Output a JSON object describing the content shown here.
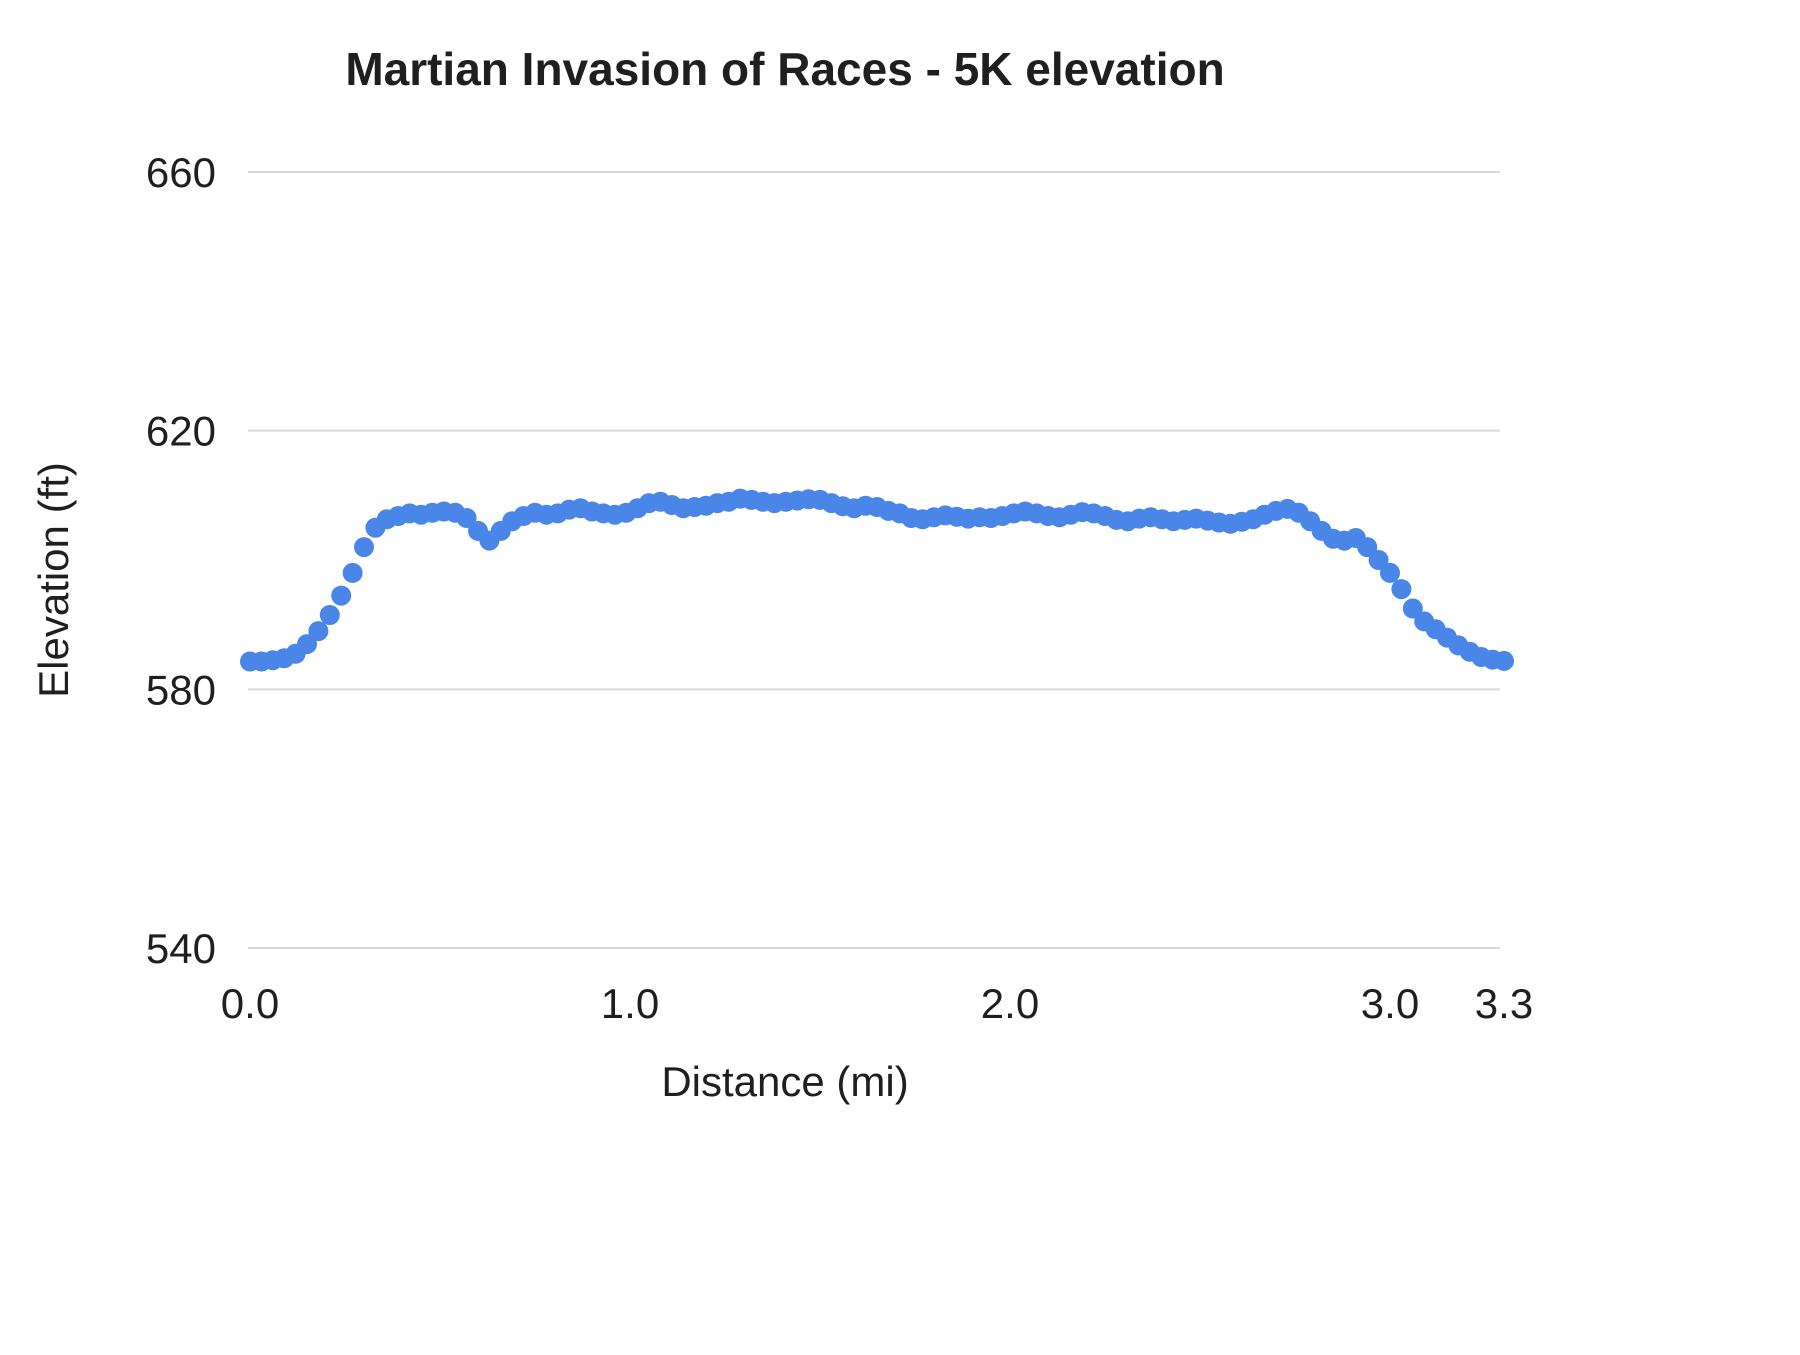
{
  "title": "Martian Invasion of Races - 5K elevation",
  "colors": {
    "background": "#ffffff",
    "grid": "#d9d9d9",
    "text": "#1f1f1f",
    "point": "#4a86e8"
  },
  "chart_data": {
    "type": "scatter",
    "title": "Martian Invasion of Races - 5K elevation",
    "xlabel": "Distance (mi)",
    "ylabel": "Elevation (ft)",
    "xlim": [
      0.0,
      3.3
    ],
    "ylim": [
      540,
      660
    ],
    "xticks": [
      0.0,
      1.0,
      2.0,
      3.0,
      3.3
    ],
    "xtick_labels": [
      "0.0",
      "1.0",
      "2.0",
      "3.0",
      "3.3"
    ],
    "yticks": [
      540,
      580,
      620,
      660
    ],
    "ytick_labels": [
      "540",
      "580",
      "620",
      "660"
    ],
    "grid": "horizontal",
    "legend": "none",
    "point_color": "#4a86e8",
    "series_name": "Elevation",
    "points": [
      [
        0.0,
        584.3
      ],
      [
        0.03,
        584.3
      ],
      [
        0.06,
        584.5
      ],
      [
        0.09,
        584.8
      ],
      [
        0.12,
        585.5
      ],
      [
        0.15,
        587.0
      ],
      [
        0.18,
        589.0
      ],
      [
        0.21,
        591.5
      ],
      [
        0.24,
        594.5
      ],
      [
        0.27,
        598.0
      ],
      [
        0.3,
        602.0
      ],
      [
        0.33,
        605.0
      ],
      [
        0.36,
        606.3
      ],
      [
        0.39,
        606.8
      ],
      [
        0.42,
        607.2
      ],
      [
        0.45,
        607.0
      ],
      [
        0.48,
        607.3
      ],
      [
        0.51,
        607.5
      ],
      [
        0.54,
        607.3
      ],
      [
        0.57,
        606.5
      ],
      [
        0.6,
        604.5
      ],
      [
        0.63,
        603.0
      ],
      [
        0.66,
        604.5
      ],
      [
        0.69,
        606.0
      ],
      [
        0.72,
        606.8
      ],
      [
        0.75,
        607.3
      ],
      [
        0.78,
        607.0
      ],
      [
        0.81,
        607.2
      ],
      [
        0.84,
        607.8
      ],
      [
        0.87,
        608.0
      ],
      [
        0.9,
        607.5
      ],
      [
        0.93,
        607.2
      ],
      [
        0.96,
        607.0
      ],
      [
        0.99,
        607.3
      ],
      [
        1.02,
        608.0
      ],
      [
        1.05,
        608.8
      ],
      [
        1.08,
        609.0
      ],
      [
        1.11,
        608.5
      ],
      [
        1.14,
        608.0
      ],
      [
        1.17,
        608.2
      ],
      [
        1.2,
        608.4
      ],
      [
        1.23,
        608.8
      ],
      [
        1.26,
        609.0
      ],
      [
        1.29,
        609.5
      ],
      [
        1.32,
        609.3
      ],
      [
        1.35,
        609.0
      ],
      [
        1.38,
        608.8
      ],
      [
        1.41,
        609.0
      ],
      [
        1.44,
        609.2
      ],
      [
        1.47,
        609.4
      ],
      [
        1.5,
        609.3
      ],
      [
        1.53,
        608.8
      ],
      [
        1.56,
        608.3
      ],
      [
        1.59,
        608.0
      ],
      [
        1.62,
        608.4
      ],
      [
        1.65,
        608.2
      ],
      [
        1.68,
        607.6
      ],
      [
        1.71,
        607.2
      ],
      [
        1.74,
        606.5
      ],
      [
        1.77,
        606.3
      ],
      [
        1.8,
        606.6
      ],
      [
        1.83,
        606.9
      ],
      [
        1.86,
        606.7
      ],
      [
        1.89,
        606.4
      ],
      [
        1.92,
        606.6
      ],
      [
        1.95,
        606.5
      ],
      [
        1.98,
        606.8
      ],
      [
        2.01,
        607.2
      ],
      [
        2.04,
        607.5
      ],
      [
        2.07,
        607.2
      ],
      [
        2.1,
        606.8
      ],
      [
        2.13,
        606.6
      ],
      [
        2.16,
        607.0
      ],
      [
        2.19,
        607.4
      ],
      [
        2.22,
        607.2
      ],
      [
        2.25,
        606.8
      ],
      [
        2.28,
        606.2
      ],
      [
        2.31,
        606.0
      ],
      [
        2.34,
        606.4
      ],
      [
        2.37,
        606.6
      ],
      [
        2.4,
        606.3
      ],
      [
        2.43,
        606.0
      ],
      [
        2.46,
        606.2
      ],
      [
        2.49,
        606.4
      ],
      [
        2.52,
        606.1
      ],
      [
        2.55,
        605.8
      ],
      [
        2.58,
        605.6
      ],
      [
        2.61,
        605.9
      ],
      [
        2.64,
        606.3
      ],
      [
        2.67,
        607.0
      ],
      [
        2.7,
        607.6
      ],
      [
        2.73,
        607.9
      ],
      [
        2.76,
        607.3
      ],
      [
        2.79,
        606.0
      ],
      [
        2.82,
        604.5
      ],
      [
        2.85,
        603.3
      ],
      [
        2.88,
        603.0
      ],
      [
        2.91,
        603.4
      ],
      [
        2.94,
        602.0
      ],
      [
        2.97,
        600.0
      ],
      [
        3.0,
        598.0
      ],
      [
        3.03,
        595.5
      ],
      [
        3.06,
        592.5
      ],
      [
        3.09,
        590.5
      ],
      [
        3.12,
        589.3
      ],
      [
        3.15,
        588.0
      ],
      [
        3.18,
        586.8
      ],
      [
        3.21,
        585.8
      ],
      [
        3.24,
        585.0
      ],
      [
        3.27,
        584.6
      ],
      [
        3.3,
        584.4
      ]
    ]
  }
}
